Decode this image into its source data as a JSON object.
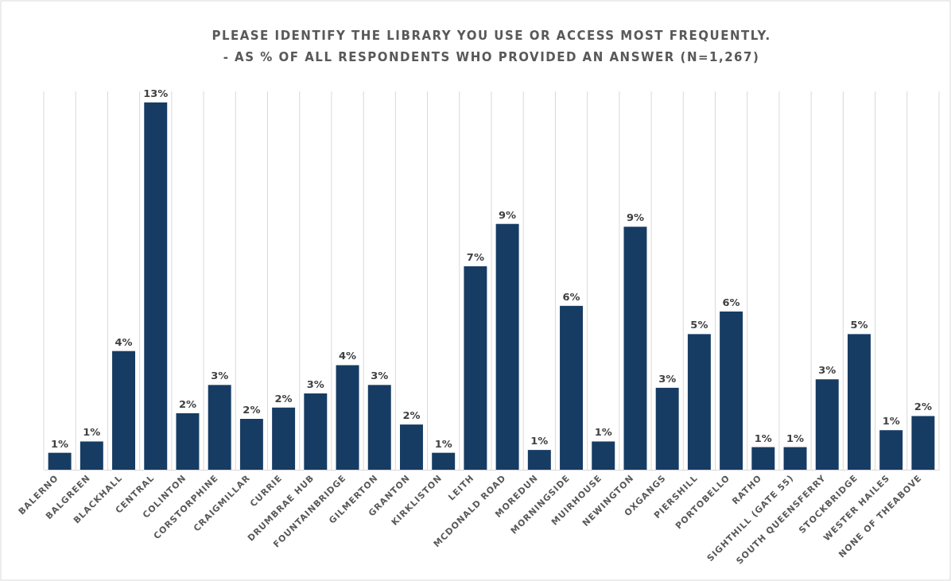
{
  "chart_data": {
    "type": "bar",
    "title": "PLEASE IDENTIFY THE LIBRARY YOU USE OR ACCESS MOST FREQUENTLY.",
    "subtitle": "- AS % OF ALL RESPONDENTS WHO PROVIDED AN ANSWER (N=1,267)",
    "categories": [
      "BALERNO",
      "BALGREEN",
      "BLACKHALL",
      "CENTRAL",
      "COLINTON",
      "CORSTORPHINE",
      "CRAIGMILLAR",
      "CURRIE",
      "DRUMBRAE HUB",
      "FOUNTAINBRIDGE",
      "GILMERTON",
      "GRANTON",
      "KIRKLISTON",
      "LEITH",
      "MCDONALD ROAD",
      "MOREDUN",
      "MORNINGSIDE",
      "MUIRHOUSE",
      "NEWINGTON",
      "OXGANGS",
      "PIERSHILL",
      "PORTOBELLO",
      "RATHO",
      "SIGHTHILL (GATE 55)",
      "SOUTH QUEENSFERRY",
      "STOCKBRIDGE",
      "WESTER HAILES",
      "NONE OF THEABOVE"
    ],
    "values": [
      0.6,
      1.0,
      4.2,
      13.0,
      2.0,
      3.0,
      1.8,
      2.2,
      2.7,
      3.7,
      3.0,
      1.6,
      0.6,
      7.2,
      8.7,
      0.7,
      5.8,
      1.0,
      8.6,
      2.9,
      4.8,
      5.6,
      0.8,
      0.8,
      3.2,
      4.8,
      1.4,
      1.9
    ],
    "value_labels": [
      "1%",
      "1%",
      "4%",
      "13%",
      "2%",
      "3%",
      "2%",
      "2%",
      "3%",
      "4%",
      "3%",
      "2%",
      "1%",
      "7%",
      "9%",
      "1%",
      "6%",
      "1%",
      "9%",
      "3%",
      "5%",
      "6%",
      "1%",
      "1%",
      "3%",
      "5%",
      "1%",
      "2%"
    ],
    "color": "#173c63",
    "grid": "x"
  }
}
